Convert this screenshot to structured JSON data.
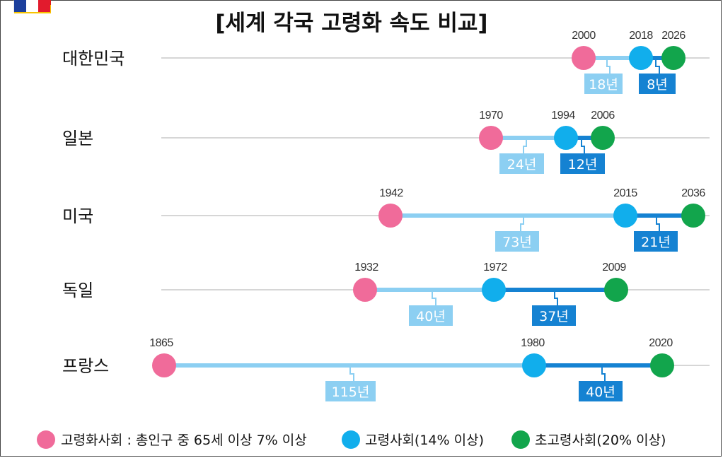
{
  "chart_data": {
    "type": "timeline",
    "title": "[세계 각국 고령화 속도 비교]",
    "stages": [
      {
        "name": "고령화사회 : 총인구 중 65세 이상 7% 이상",
        "color": "#f06b9a"
      },
      {
        "name": "고령사회(14% 이상)",
        "color": "#11aeec"
      },
      {
        "name": "초고령사회(20% 이상)",
        "color": "#12a54c"
      }
    ],
    "countries": [
      {
        "name": "대한민국",
        "flag": "korea-flag-icon",
        "years": [
          2000,
          2018,
          2026
        ],
        "years_label": [
          "2000",
          "2018",
          "2026"
        ],
        "durations": [
          "18년",
          "8년"
        ]
      },
      {
        "name": "일본",
        "flag": "japan-flag-icon",
        "years": [
          1970,
          1994,
          2006
        ],
        "years_label": [
          "1970",
          "1994",
          "2006"
        ],
        "durations": [
          "24년",
          "12년"
        ]
      },
      {
        "name": "미국",
        "flag": "usa-flag-icon",
        "years": [
          1942,
          2015,
          2036
        ],
        "years_label": [
          "1942",
          "2015",
          "2036"
        ],
        "durations": [
          "73년",
          "21년"
        ]
      },
      {
        "name": "독일",
        "flag": "germany-flag-icon",
        "years": [
          1932,
          1972,
          2009
        ],
        "years_label": [
          "1932",
          "1972",
          "2009"
        ],
        "durations": [
          "40년",
          "37년"
        ]
      },
      {
        "name": "프랑스",
        "flag": "france-flag-icon",
        "years": [
          1865,
          1980,
          2020
        ],
        "years_label": [
          "1865",
          "1980",
          "2020"
        ],
        "durations": [
          "115년",
          "40년"
        ]
      }
    ]
  },
  "colors": {
    "track": "#d6d6d6",
    "segment1": "#8ccff2",
    "segment2": "#1582d2",
    "label1": "#8ccff2",
    "label2": "#1582d2"
  }
}
